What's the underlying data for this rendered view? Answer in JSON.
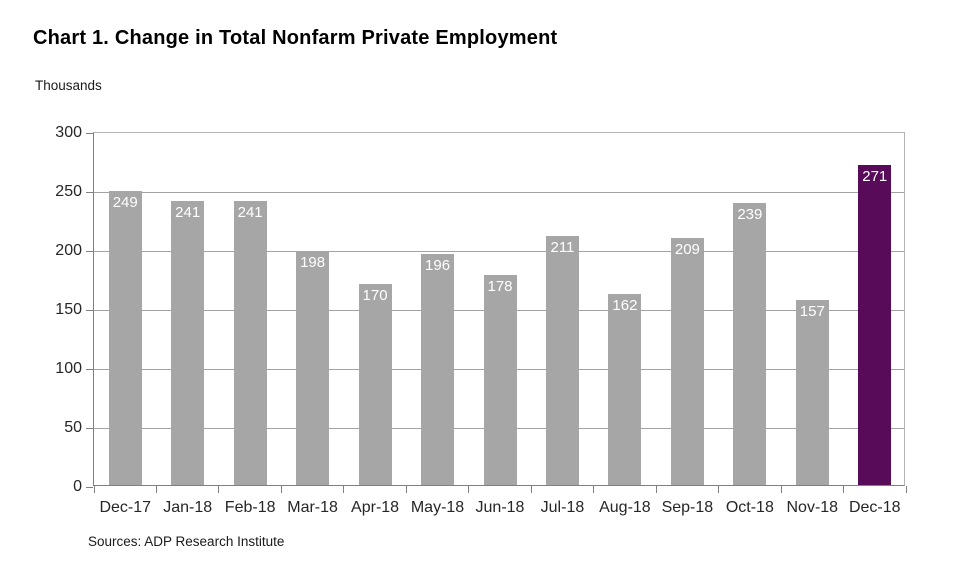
{
  "chart_data": {
    "type": "bar",
    "title": "Chart 1. Change in Total Nonfarm Private Employment",
    "ylabel": "Thousands",
    "xlabel": "",
    "categories": [
      "Dec-17",
      "Jan-18",
      "Feb-18",
      "Mar-18",
      "Apr-18",
      "May-18",
      "Jun-18",
      "Jul-18",
      "Aug-18",
      "Sep-18",
      "Oct-18",
      "Nov-18",
      "Dec-18"
    ],
    "values": [
      249,
      241,
      241,
      198,
      170,
      196,
      178,
      211,
      162,
      209,
      239,
      157,
      271
    ],
    "ylim": [
      0,
      300
    ],
    "yticks": [
      0,
      50,
      100,
      150,
      200,
      250,
      300
    ],
    "grid": true,
    "legend": "none",
    "value_labels_inside_bar_top": true,
    "source": "Sources: ADP Research Institute",
    "colors": {
      "bar": "#a6a6a6",
      "highlight": "#570b59",
      "value_label": "#ffffff",
      "gridline": "#a3a3a3",
      "axis": "#808080"
    },
    "highlight_index": 12
  }
}
